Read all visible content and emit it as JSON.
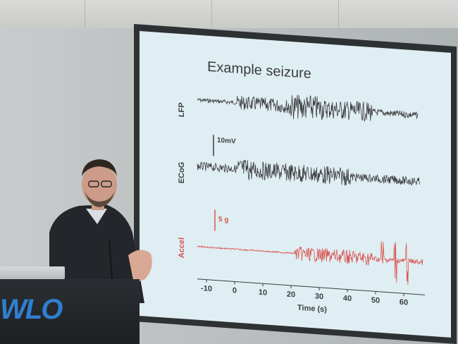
{
  "slide": {
    "title": "Example seizure",
    "channels": [
      {
        "label": "LFP",
        "color": "#3b3b3d"
      },
      {
        "label": "ECoG",
        "color": "#3b3b3d"
      },
      {
        "label": "Accel",
        "color": "#d9534f"
      }
    ],
    "scale_bars": [
      {
        "label": "10mV",
        "color": "#3b3b3d"
      },
      {
        "label": "5 g",
        "color": "#d9534f"
      }
    ],
    "x_axis": {
      "ticks": [
        "-10",
        "0",
        "10",
        "20",
        "30",
        "40",
        "50",
        "60"
      ],
      "title": "Time (s)"
    }
  },
  "podium": {
    "logo_text": "WLO"
  }
}
